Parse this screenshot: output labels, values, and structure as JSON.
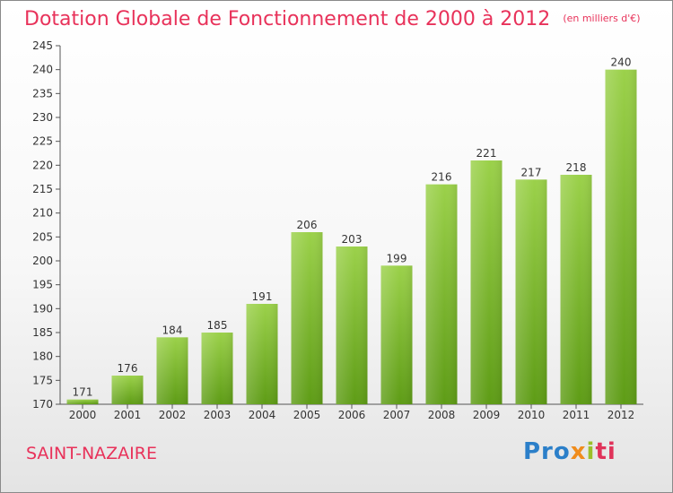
{
  "chart_data": {
    "type": "bar",
    "title": "Dotation Globale de Fonctionnement de 2000 à 2012",
    "unit": "(en milliers d'€)",
    "categories": [
      "2000",
      "2001",
      "2002",
      "2003",
      "2004",
      "2005",
      "2006",
      "2007",
      "2008",
      "2009",
      "2010",
      "2011",
      "2012"
    ],
    "values": [
      171,
      176,
      184,
      185,
      191,
      206,
      203,
      199,
      216,
      221,
      217,
      218,
      240
    ],
    "ylim": [
      170,
      245
    ],
    "yticks": [
      170,
      175,
      180,
      185,
      190,
      195,
      200,
      205,
      210,
      215,
      220,
      225,
      230,
      235,
      240,
      245
    ],
    "grid": false,
    "colors": {
      "bar_top": "#9bd14a",
      "bar_bottom": "#5e9c16",
      "axis": "#555555"
    }
  },
  "commune": "SAINT-NAZAIRE",
  "logo": {
    "p1": "Pro",
    "p2": "x",
    "p3": "i",
    "p4": "ti"
  }
}
